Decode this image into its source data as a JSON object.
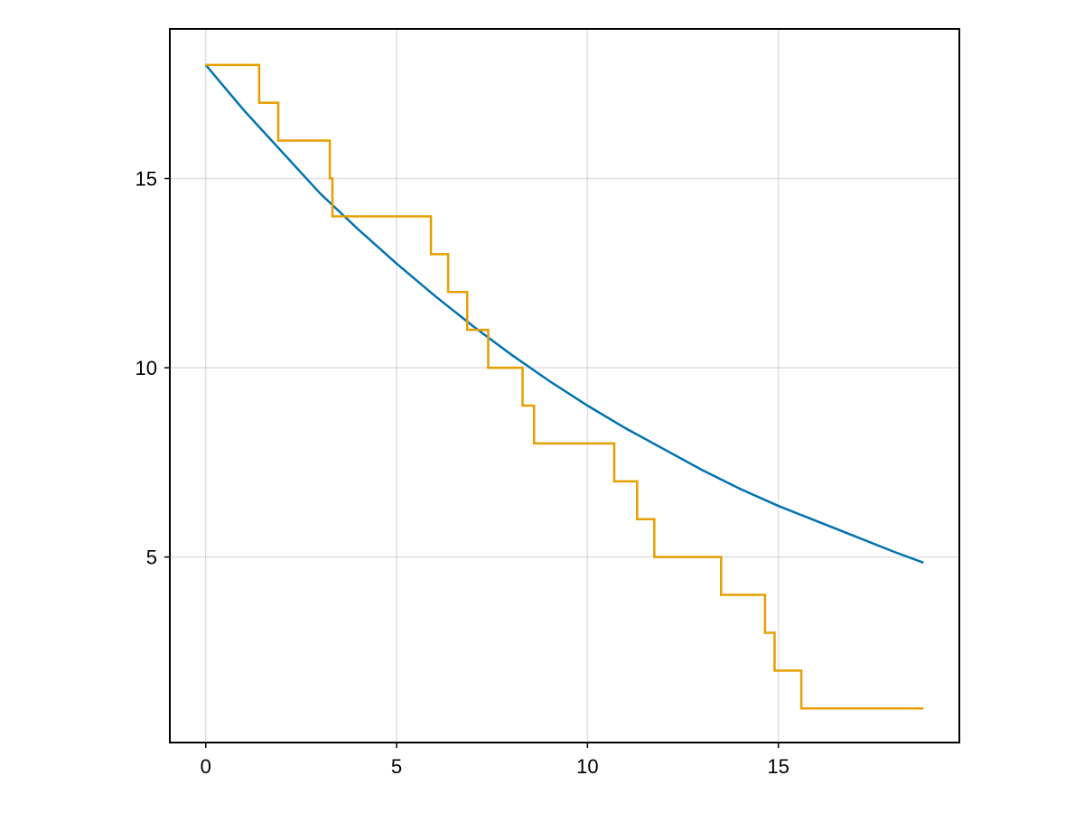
{
  "chart_data": {
    "type": "line",
    "title": "",
    "xlabel": "",
    "ylabel": "",
    "xlim": [
      -0.94,
      19.74
    ],
    "ylim": [
      0.1,
      18.95
    ],
    "x_ticks": [
      0,
      5,
      10,
      15
    ],
    "x_tick_labels": [
      "0",
      "5",
      "10",
      "15"
    ],
    "y_ticks": [
      5,
      10,
      15
    ],
    "y_tick_labels": [
      "5",
      "10",
      "15"
    ],
    "grid": true,
    "legend": "none",
    "series": [
      {
        "style": "line",
        "color": "#0072b2",
        "x": [
          0,
          1,
          2,
          3,
          4,
          5,
          6,
          7,
          8,
          9,
          10,
          11,
          12,
          13,
          14,
          15,
          16,
          17,
          18,
          18.8
        ],
        "y": [
          18.0,
          16.8,
          15.7,
          14.6,
          13.65,
          12.75,
          11.9,
          11.1,
          10.35,
          9.65,
          9.0,
          8.4,
          7.85,
          7.3,
          6.8,
          6.35,
          5.95,
          5.55,
          5.15,
          4.85
        ]
      },
      {
        "style": "step-post",
        "color": "#e69f00",
        "x": [
          0,
          1.4,
          1.9,
          3.25,
          3.32,
          5.9,
          6.35,
          6.85,
          7.4,
          8.3,
          8.6,
          10.7,
          11.3,
          11.75,
          13.5,
          14.65,
          14.9,
          15.6,
          18.8
        ],
        "y": [
          18,
          17,
          16,
          15,
          14,
          13,
          12,
          11,
          10,
          9,
          8,
          7,
          6,
          5,
          4,
          3,
          2,
          1,
          1
        ]
      }
    ]
  }
}
